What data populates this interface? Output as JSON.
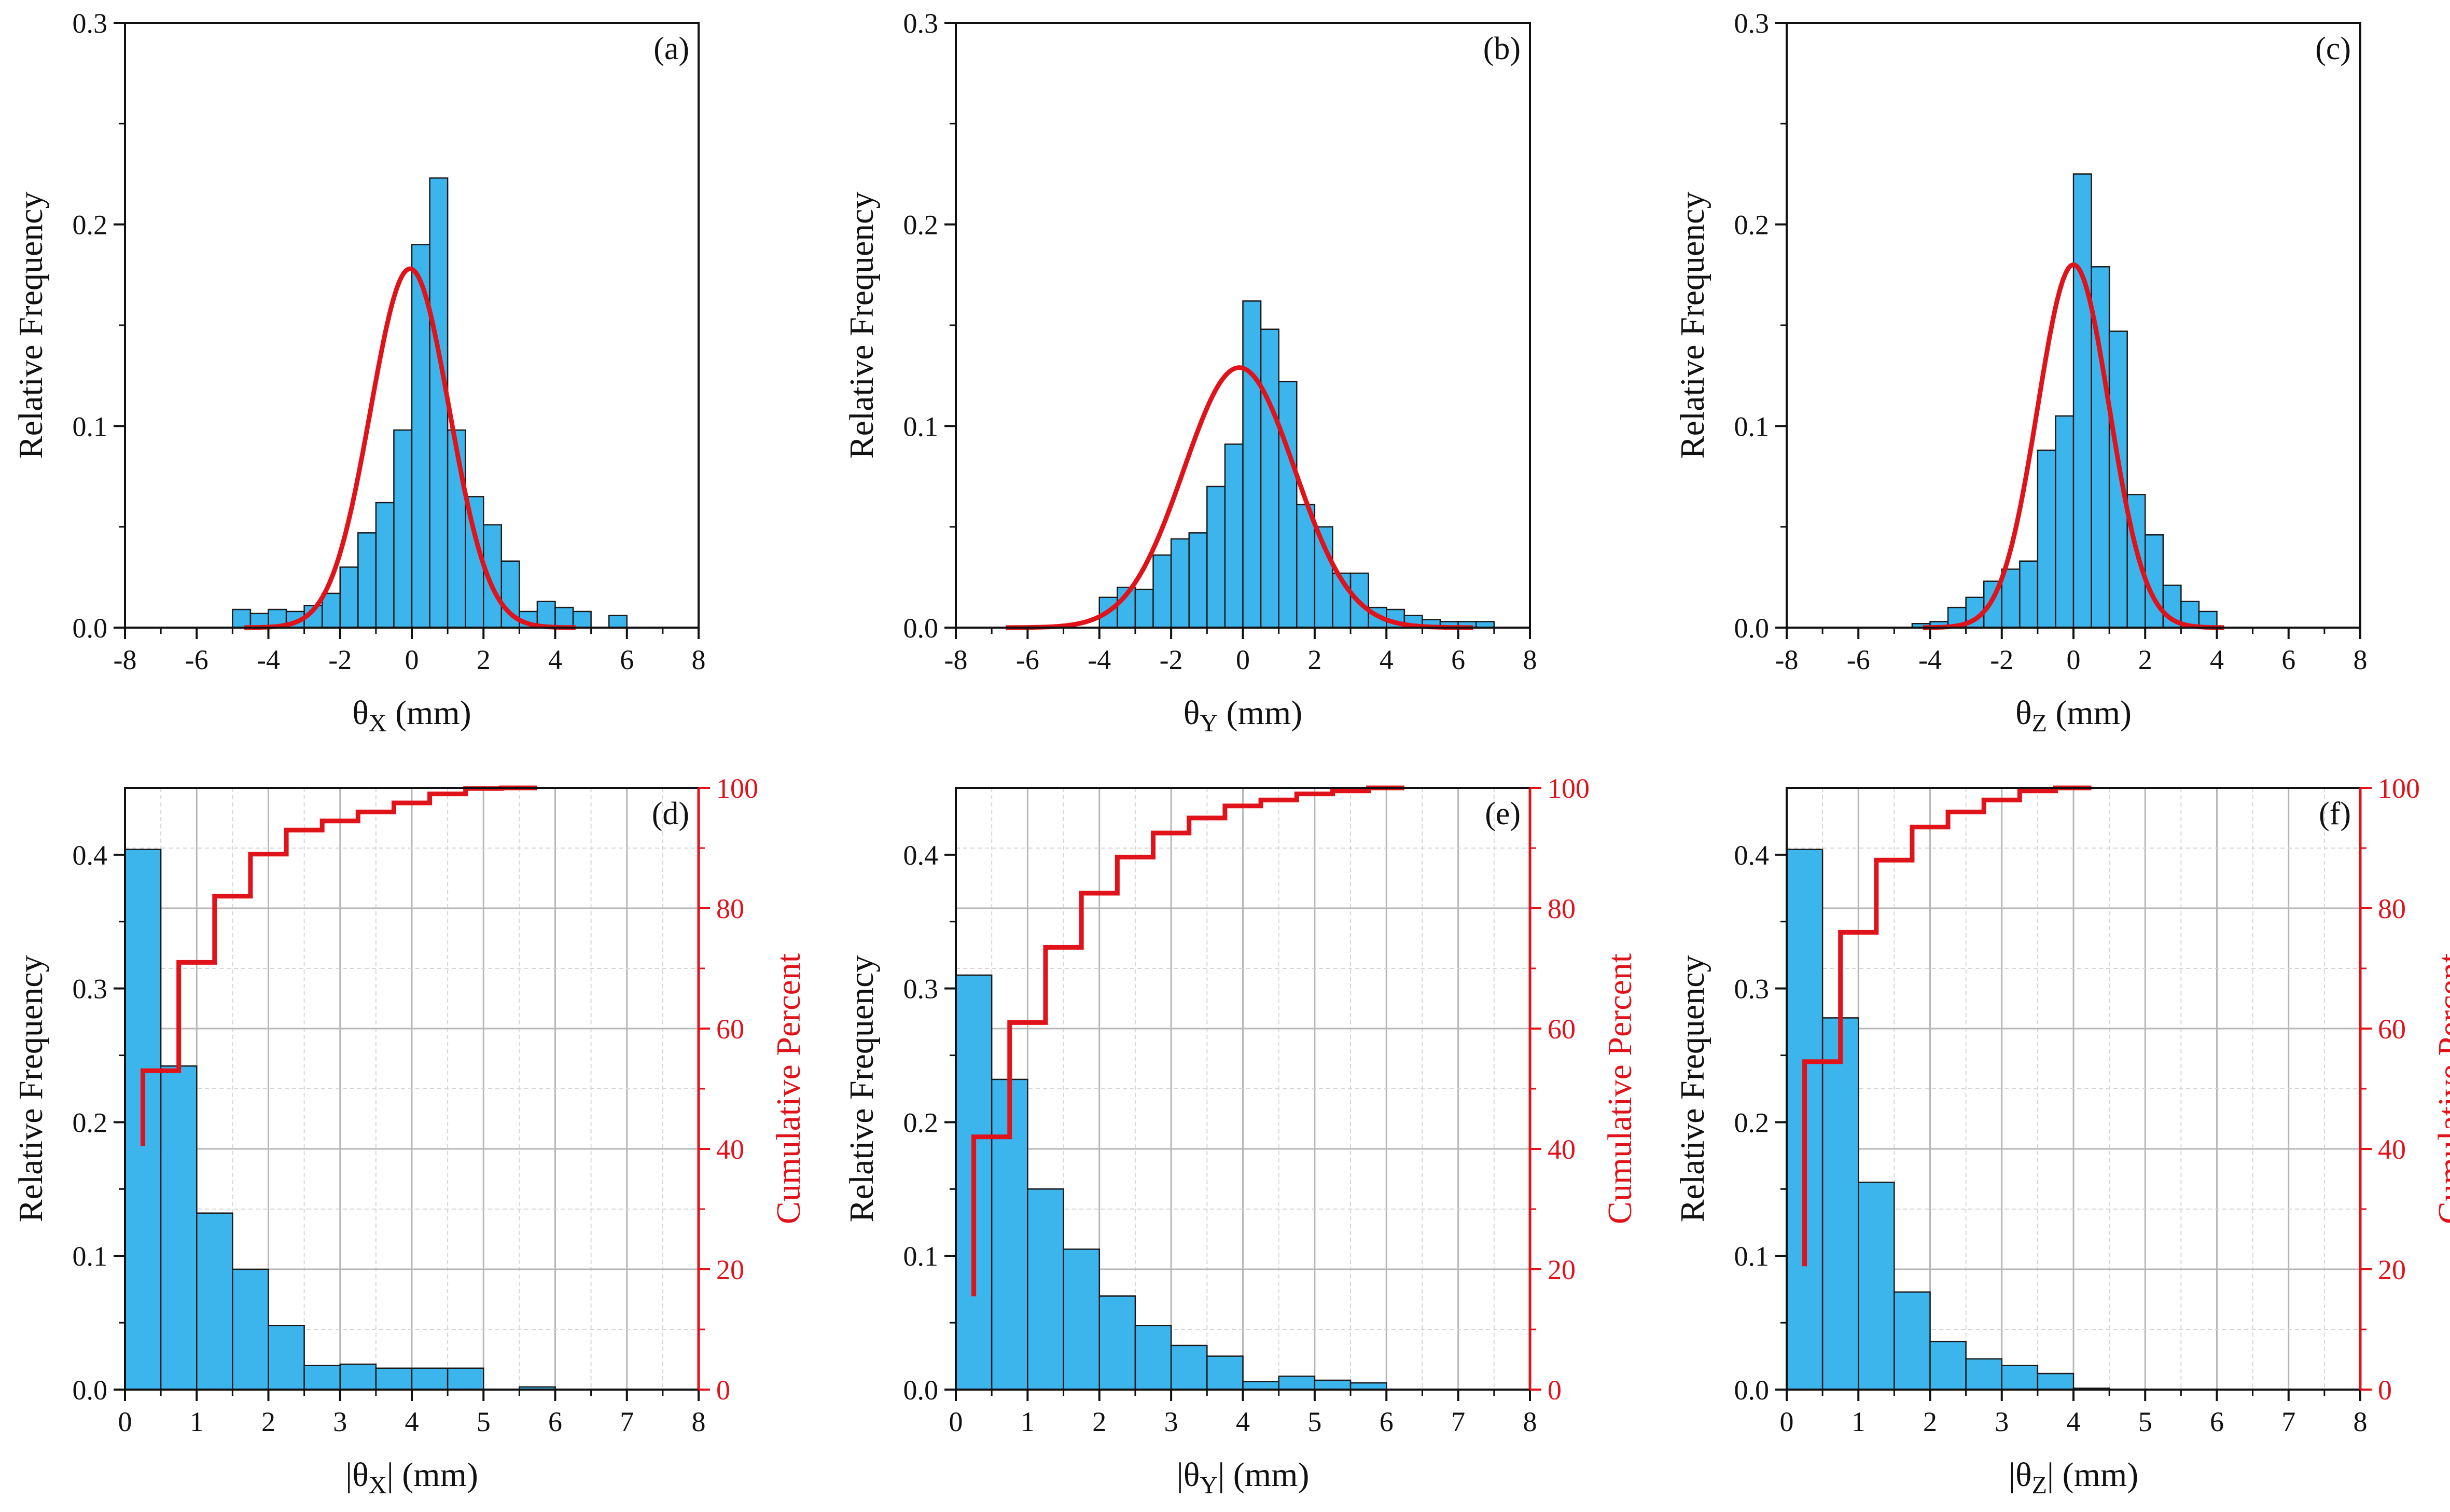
{
  "colors": {
    "bar": "#3cb4ec",
    "bar_edge": "#1a1a1a",
    "curve": "#e0131b",
    "grid": "#b7b7b7",
    "grid_minor": "#d6d6d6"
  },
  "chart_data": [
    {
      "id": "a",
      "panel": "(a)",
      "type": "bar",
      "fit": "normal",
      "xlabel": "θ",
      "xsub": "X",
      "xunit": " (mm)",
      "ylabel": "Relative Frequency",
      "xlim": [
        -8,
        8
      ],
      "ylim": [
        0,
        0.3
      ],
      "xticks": [
        "-8",
        "-6",
        "-4",
        "-2",
        "0",
        "2",
        "4",
        "6",
        "8"
      ],
      "yticks": [
        "0.0",
        "0.1",
        "0.2",
        "0.3"
      ],
      "bin_width": 0.5,
      "bin_centers": [
        -4.75,
        -4.25,
        -3.75,
        -3.25,
        -2.75,
        -2.25,
        -1.75,
        -1.25,
        -0.75,
        -0.25,
        0.25,
        0.75,
        1.25,
        1.75,
        2.25,
        2.75,
        3.25,
        3.75,
        4.25,
        4.75,
        5.75
      ],
      "values": [
        0.009,
        0.007,
        0.009,
        0.008,
        0.011,
        0.017,
        0.03,
        0.047,
        0.062,
        0.098,
        0.19,
        0.223,
        0.098,
        0.065,
        0.051,
        0.033,
        0.008,
        0.013,
        0.01,
        0.008,
        0.006
      ],
      "fit_params": {
        "mean": -0.05,
        "sd": 1.1,
        "peak": 0.178
      }
    },
    {
      "id": "b",
      "panel": "(b)",
      "type": "bar",
      "fit": "normal",
      "xlabel": "θ",
      "xsub": "Y",
      "xunit": " (mm)",
      "ylabel": "Relative Frequency",
      "xlim": [
        -8,
        8
      ],
      "ylim": [
        0,
        0.3
      ],
      "xticks": [
        "-8",
        "-6",
        "-4",
        "-2",
        "0",
        "2",
        "4",
        "6",
        "8"
      ],
      "yticks": [
        "0.0",
        "0.1",
        "0.2",
        "0.3"
      ],
      "bin_width": 0.5,
      "bin_centers": [
        -3.75,
        -3.25,
        -2.75,
        -2.25,
        -1.75,
        -1.25,
        -0.75,
        -0.25,
        0.25,
        0.75,
        1.25,
        1.75,
        2.25,
        2.75,
        3.25,
        3.75,
        4.25,
        4.75,
        5.25,
        5.75,
        6.25,
        6.75
      ],
      "values": [
        0.015,
        0.02,
        0.019,
        0.036,
        0.044,
        0.047,
        0.07,
        0.091,
        0.162,
        0.148,
        0.122,
        0.061,
        0.05,
        0.027,
        0.027,
        0.01,
        0.009,
        0.006,
        0.004,
        0.003,
        0.003,
        0.003
      ],
      "fit_params": {
        "mean": -0.1,
        "sd": 1.55,
        "peak": 0.129
      }
    },
    {
      "id": "c",
      "panel": "(c)",
      "type": "bar",
      "fit": "normal",
      "xlabel": "θ",
      "xsub": "Z",
      "xunit": " (mm)",
      "ylabel": "Relative Frequency",
      "xlim": [
        -8,
        8
      ],
      "ylim": [
        0,
        0.3
      ],
      "xticks": [
        "-8",
        "-6",
        "-4",
        "-2",
        "0",
        "2",
        "4",
        "6",
        "8"
      ],
      "yticks": [
        "0.0",
        "0.1",
        "0.2",
        "0.3"
      ],
      "bin_width": 0.5,
      "bin_centers": [
        -4.25,
        -3.75,
        -3.25,
        -2.75,
        -2.25,
        -1.75,
        -1.25,
        -0.75,
        -0.25,
        0.25,
        0.75,
        1.25,
        1.75,
        2.25,
        2.75,
        3.25,
        3.75
      ],
      "values": [
        0.002,
        0.003,
        0.01,
        0.015,
        0.023,
        0.029,
        0.033,
        0.088,
        0.105,
        0.225,
        0.179,
        0.147,
        0.066,
        0.046,
        0.021,
        0.013,
        0.008
      ],
      "fit_params": {
        "mean": 0.0,
        "sd": 1.0,
        "peak": 0.18
      }
    },
    {
      "id": "d",
      "panel": "(d)",
      "type": "bar",
      "fit": "cumulative",
      "xlabel": "|θ",
      "xsub": "X",
      "xunit": "| (mm)",
      "ylabel": "Relative Frequency",
      "ylabel2": "Cumulative Percent",
      "xlim": [
        0,
        8
      ],
      "ylim": [
        0,
        0.45
      ],
      "y2lim": [
        0,
        100
      ],
      "xticks": [
        "0",
        "1",
        "2",
        "3",
        "4",
        "5",
        "6",
        "7",
        "8"
      ],
      "yticks": [
        "0.0",
        "0.1",
        "0.2",
        "0.3",
        "0.4"
      ],
      "y2ticks": [
        "0",
        "20",
        "40",
        "60",
        "80",
        "100"
      ],
      "bin_width": 0.5,
      "bin_centers": [
        0.25,
        0.75,
        1.25,
        1.75,
        2.25,
        2.75,
        3.25,
        3.75,
        4.25,
        4.75,
        5.25,
        5.75,
        6.25,
        6.75,
        7.25,
        7.75
      ],
      "values": [
        0.404,
        0.242,
        0.132,
        0.09,
        0.048,
        0.018,
        0.019,
        0.016,
        0.016,
        0.016,
        0.0,
        0.002,
        0.0,
        0.0,
        0.0,
        0.0
      ],
      "cumulative_percent": [
        53,
        71,
        82,
        89,
        93,
        94.5,
        96,
        97.5,
        99,
        99.9,
        100,
        100,
        100,
        100,
        100,
        100
      ],
      "cumulative_start": 40.5
    },
    {
      "id": "e",
      "panel": "(e)",
      "type": "bar",
      "fit": "cumulative",
      "xlabel": "|θ",
      "xsub": "Y",
      "xunit": "| (mm)",
      "ylabel": "Relative Frequency",
      "ylabel2": "Cumulative Percent",
      "xlim": [
        0,
        8
      ],
      "ylim": [
        0,
        0.45
      ],
      "y2lim": [
        0,
        100
      ],
      "xticks": [
        "0",
        "1",
        "2",
        "3",
        "4",
        "5",
        "6",
        "7",
        "8"
      ],
      "yticks": [
        "0.0",
        "0.1",
        "0.2",
        "0.3",
        "0.4"
      ],
      "y2ticks": [
        "0",
        "20",
        "40",
        "60",
        "80",
        "100"
      ],
      "bin_width": 0.5,
      "bin_centers": [
        0.25,
        0.75,
        1.25,
        1.75,
        2.25,
        2.75,
        3.25,
        3.75,
        4.25,
        4.75,
        5.25,
        5.75,
        6.25,
        6.75,
        7.25,
        7.75
      ],
      "values": [
        0.31,
        0.232,
        0.15,
        0.105,
        0.07,
        0.048,
        0.033,
        0.025,
        0.006,
        0.01,
        0.007,
        0.005,
        0.0,
        0.0,
        0.0,
        0.0
      ],
      "cumulative_percent": [
        42,
        61,
        73.5,
        82.5,
        88.5,
        92.5,
        95,
        97,
        98,
        99,
        99.5,
        100,
        100,
        100,
        100,
        100
      ],
      "cumulative_start": 15.5
    },
    {
      "id": "f",
      "panel": "(f)",
      "type": "bar",
      "fit": "cumulative",
      "xlabel": "|θ",
      "xsub": "Z",
      "xunit": "| (mm)",
      "ylabel": "Relative Frequency",
      "ylabel2": "Cumulative Percent",
      "xlim": [
        0,
        8
      ],
      "ylim": [
        0,
        0.45
      ],
      "y2lim": [
        0,
        100
      ],
      "xticks": [
        "0",
        "1",
        "2",
        "3",
        "4",
        "5",
        "6",
        "7",
        "8"
      ],
      "yticks": [
        "0.0",
        "0.1",
        "0.2",
        "0.3",
        "0.4"
      ],
      "y2ticks": [
        "0",
        "20",
        "40",
        "60",
        "80",
        "100"
      ],
      "bin_width": 0.5,
      "bin_centers": [
        0.25,
        0.75,
        1.25,
        1.75,
        2.25,
        2.75,
        3.25,
        3.75,
        4.25,
        4.75,
        5.25,
        5.75,
        6.25,
        6.75,
        7.25,
        7.75
      ],
      "values": [
        0.404,
        0.278,
        0.155,
        0.073,
        0.036,
        0.023,
        0.018,
        0.012,
        0.001,
        0.0,
        0.0,
        0.0,
        0.0,
        0.0,
        0.0,
        0.0
      ],
      "cumulative_percent": [
        54.5,
        76,
        88,
        93.5,
        96,
        98,
        99.5,
        100,
        100,
        100,
        100,
        100,
        100,
        100,
        100,
        100
      ],
      "cumulative_start": 20.5
    }
  ]
}
